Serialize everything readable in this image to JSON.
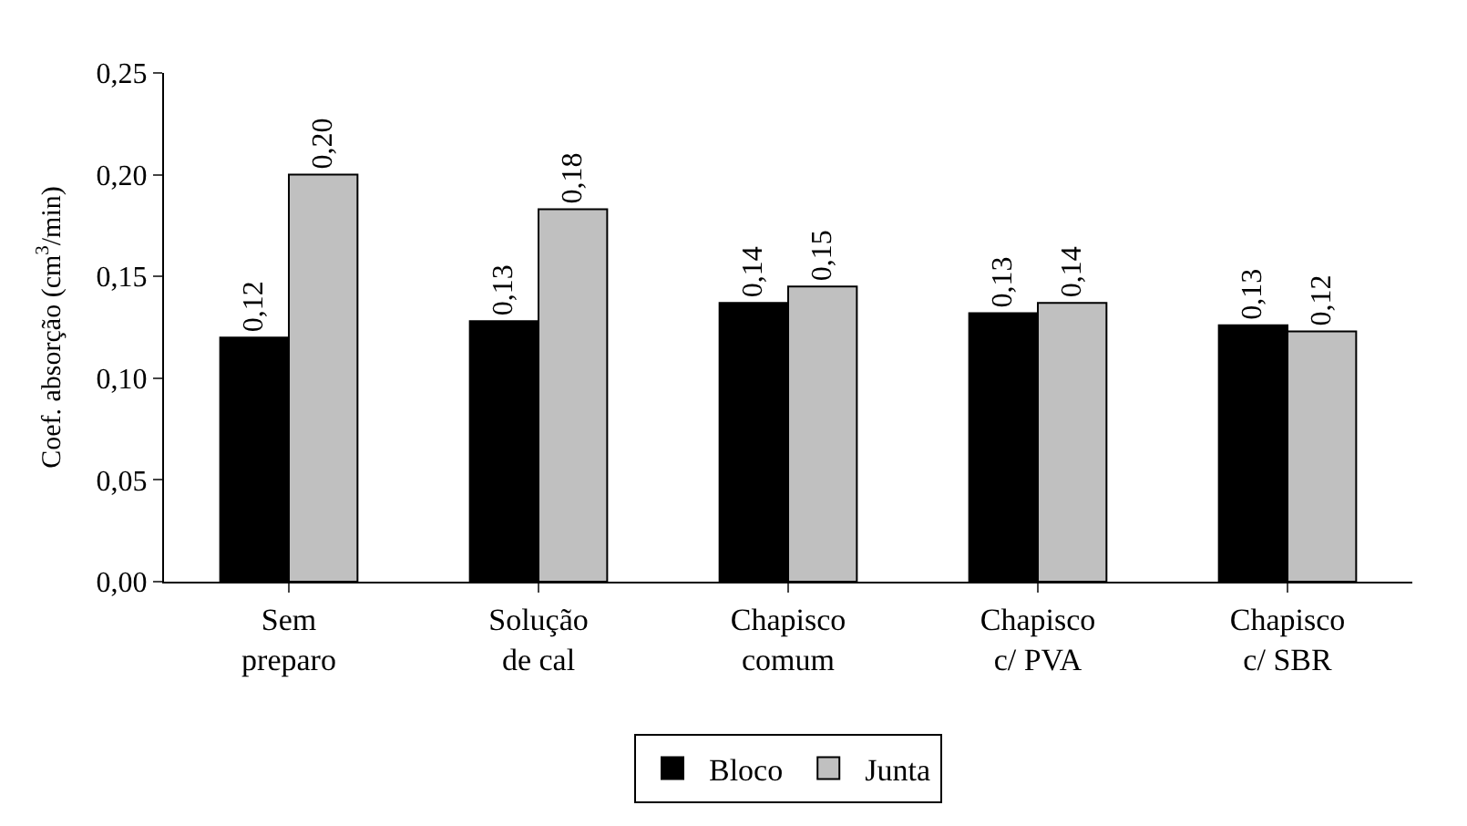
{
  "chart_data": {
    "type": "bar",
    "ylabel": "Coef. absorção (cm$^{3}$/min)",
    "categories": [
      "Sem\npreparo",
      "Solução\nde cal",
      "Chapisco\ncomum",
      "Chapisco\nc/ PVA",
      "Chapisco\nc/ SBR"
    ],
    "series": [
      {
        "name": "Bloco",
        "color": "#000000",
        "values": [
          0.12,
          0.128,
          0.137,
          0.132,
          0.126
        ],
        "value_labels": [
          "0,12",
          "0,13",
          "0,14",
          "0,13",
          "0,13"
        ]
      },
      {
        "name": "Junta",
        "color": "#c0c0c0",
        "values": [
          0.2,
          0.183,
          0.145,
          0.137,
          0.123
        ],
        "value_labels": [
          "0,20",
          "0,18",
          "0,15",
          "0,14",
          "0,12"
        ]
      }
    ],
    "ylim": [
      0,
      0.25
    ],
    "yticks": [
      {
        "value": 0,
        "label": "0,00"
      },
      {
        "value": 0.05,
        "label": "0,05"
      },
      {
        "value": 0.1,
        "label": "0,10"
      },
      {
        "value": 0.15,
        "label": "0,15"
      },
      {
        "value": 0.2,
        "label": "0,20"
      },
      {
        "value": 0.25,
        "label": "0,25"
      }
    ],
    "legend": "bottom"
  }
}
